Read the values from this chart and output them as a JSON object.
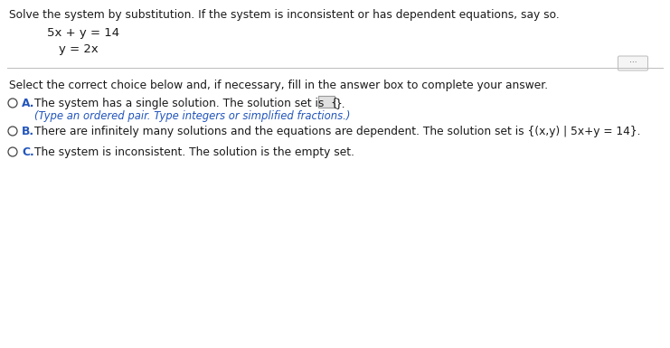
{
  "background_color": "#ffffff",
  "title_text": "Solve the system by substitution. If the system is inconsistent or has dependent equations, say so.",
  "eq1": "5x + y = 14",
  "eq2": "y = 2x",
  "select_text": "Select the correct choice below and, if necessary, fill in the answer box to complete your answer.",
  "option_a_label": "A.",
  "option_a_text1": "The system has a single solution. The solution set is  {",
  "option_a_text2": "}.",
  "option_a_sub": "(Type an ordered pair. Type integers or simplified fractions.)",
  "option_b_label": "B.",
  "option_b_text": "There are infinitely many solutions and the equations are dependent. The solution set is {(x,y) | 5x+y = 14}.",
  "option_c_label": "C.",
  "option_c_text": "The system is inconsistent. The solution is the empty set.",
  "text_color": "#1a1a1a",
  "label_color": "#2255bb",
  "circle_color": "#444444",
  "line_color": "#bbbbbb",
  "dots_color": "#444444",
  "sub_color": "#2255bb",
  "font_size_title": 8.8,
  "font_size_eq": 9.5,
  "font_size_select": 8.8,
  "font_size_option": 8.8,
  "font_size_label": 8.8,
  "font_size_sub": 8.4
}
